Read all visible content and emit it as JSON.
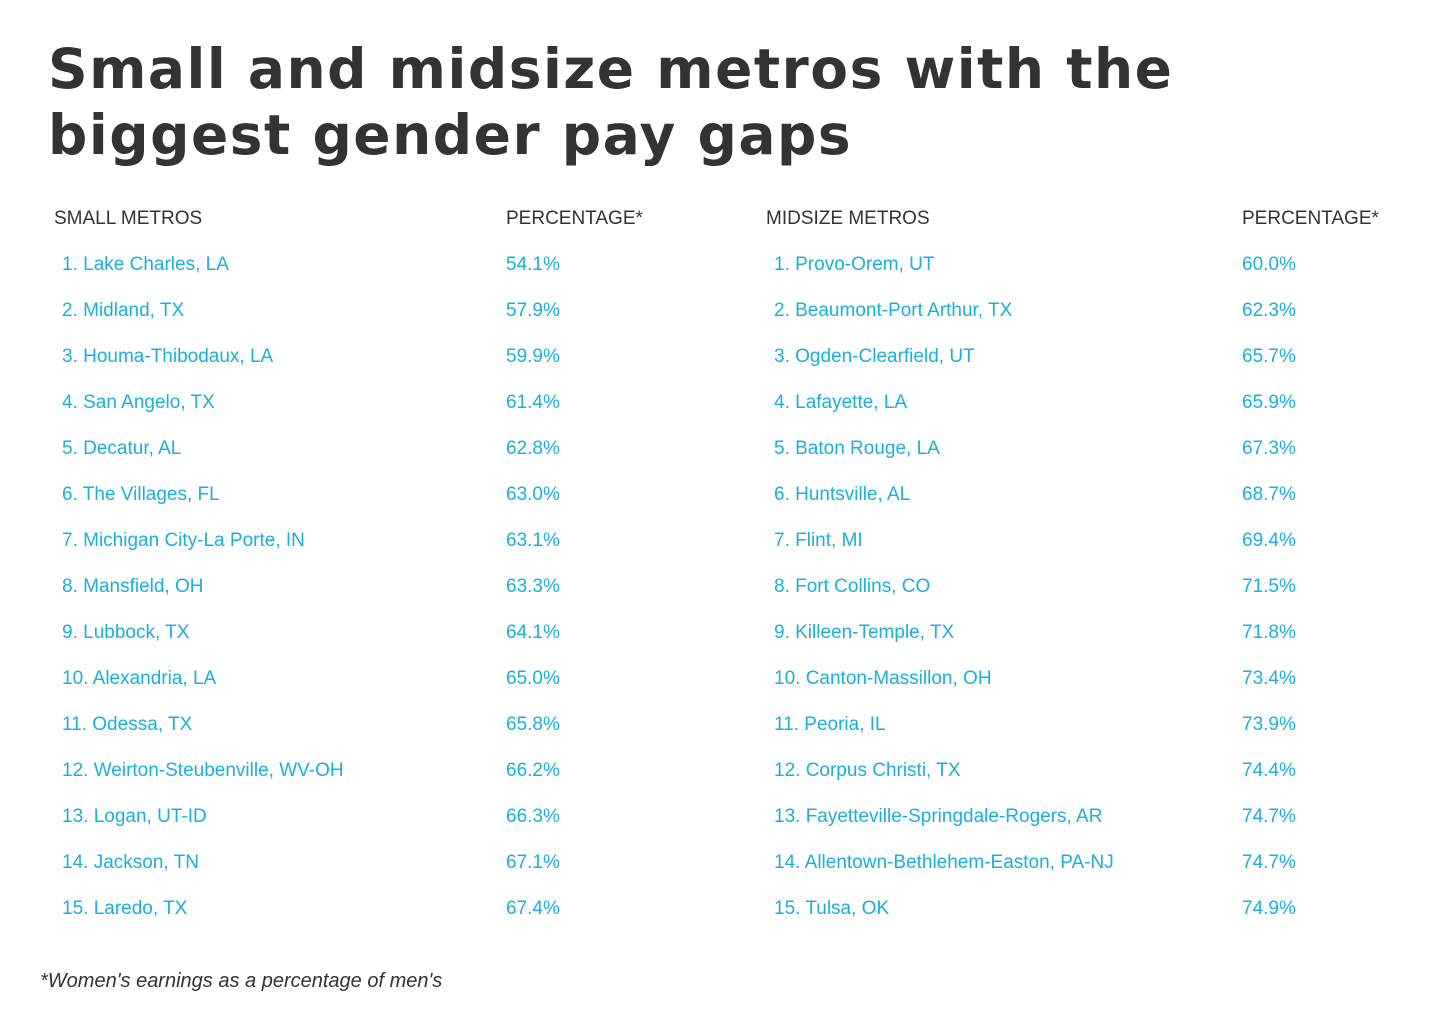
{
  "title": "Small and midsize metros with the biggest gender pay gaps",
  "footnote": "*Women's earnings as a percentage of men's",
  "colors": {
    "text": "#333333",
    "accent": "#1ab0d8",
    "background": "#ffffff"
  },
  "tables": {
    "small": {
      "header_name": "SMALL METROS",
      "header_value": "PERCENTAGE*",
      "rows": [
        {
          "label": "1. Lake Charles, LA",
          "value": "54.1%"
        },
        {
          "label": "2. Midland, TX",
          "value": "57.9%"
        },
        {
          "label": "3. Houma-Thibodaux, LA",
          "value": "59.9%"
        },
        {
          "label": "4. San Angelo, TX",
          "value": "61.4%"
        },
        {
          "label": "5. Decatur, AL",
          "value": "62.8%"
        },
        {
          "label": "6. The Villages, FL",
          "value": "63.0%"
        },
        {
          "label": "7. Michigan City-La Porte, IN",
          "value": "63.1%"
        },
        {
          "label": "8. Mansfield, OH",
          "value": "63.3%"
        },
        {
          "label": "9. Lubbock, TX",
          "value": "64.1%"
        },
        {
          "label": "10. Alexandria, LA",
          "value": "65.0%"
        },
        {
          "label": "11. Odessa, TX",
          "value": "65.8%"
        },
        {
          "label": "12. Weirton-Steubenville, WV-OH",
          "value": "66.2%"
        },
        {
          "label": "13. Logan, UT-ID",
          "value": "66.3%"
        },
        {
          "label": "14. Jackson, TN",
          "value": "67.1%"
        },
        {
          "label": "15. Laredo, TX",
          "value": "67.4%"
        }
      ]
    },
    "mid": {
      "header_name": "MIDSIZE METROS",
      "header_value": "PERCENTAGE*",
      "rows": [
        {
          "label": "1. Provo-Orem, UT",
          "value": "60.0%"
        },
        {
          "label": "2. Beaumont-Port Arthur, TX",
          "value": "62.3%"
        },
        {
          "label": "3. Ogden-Clearfield, UT",
          "value": "65.7%"
        },
        {
          "label": "4. Lafayette, LA",
          "value": "65.9%"
        },
        {
          "label": "5. Baton Rouge, LA",
          "value": "67.3%"
        },
        {
          "label": "6. Huntsville, AL",
          "value": "68.7%"
        },
        {
          "label": "7. Flint, MI",
          "value": "69.4%"
        },
        {
          "label": "8. Fort Collins, CO",
          "value": "71.5%"
        },
        {
          "label": "9. Killeen-Temple, TX",
          "value": "71.8%"
        },
        {
          "label": "10. Canton-Massillon, OH",
          "value": "73.4%"
        },
        {
          "label": "11. Peoria, IL",
          "value": "73.9%"
        },
        {
          "label": "12. Corpus Christi, TX",
          "value": "74.4%"
        },
        {
          "label": "13. Fayetteville-Springdale-Rogers, AR",
          "value": "74.7%"
        },
        {
          "label": "14. Allentown-Bethlehem-Easton, PA-NJ",
          "value": "74.7%"
        },
        {
          "label": "15. Tulsa, OK",
          "value": "74.9%"
        }
      ]
    }
  },
  "chart_data": {
    "type": "table",
    "title": "Small and midsize metros with the biggest gender pay gaps",
    "note": "*Women's earnings as a percentage of men's",
    "tables": [
      {
        "columns": [
          "SMALL METROS",
          "PERCENTAGE*"
        ],
        "categories": [
          "Lake Charles, LA",
          "Midland, TX",
          "Houma-Thibodaux, LA",
          "San Angelo, TX",
          "Decatur, AL",
          "The Villages, FL",
          "Michigan City-La Porte, IN",
          "Mansfield, OH",
          "Lubbock, TX",
          "Alexandria, LA",
          "Odessa, TX",
          "Weirton-Steubenville, WV-OH",
          "Logan, UT-ID",
          "Jackson, TN",
          "Laredo, TX"
        ],
        "values": [
          54.1,
          57.9,
          59.9,
          61.4,
          62.8,
          63.0,
          63.1,
          63.3,
          64.1,
          65.0,
          65.8,
          66.2,
          66.3,
          67.1,
          67.4
        ]
      },
      {
        "columns": [
          "MIDSIZE METROS",
          "PERCENTAGE*"
        ],
        "categories": [
          "Provo-Orem, UT",
          "Beaumont-Port Arthur, TX",
          "Ogden-Clearfield, UT",
          "Lafayette, LA",
          "Baton Rouge, LA",
          "Huntsville, AL",
          "Flint, MI",
          "Fort Collins, CO",
          "Killeen-Temple, TX",
          "Canton-Massillon, OH",
          "Peoria, IL",
          "Corpus Christi, TX",
          "Fayetteville-Springdale-Rogers, AR",
          "Allentown-Bethlehem-Easton, PA-NJ",
          "Tulsa, OK"
        ],
        "values": [
          60.0,
          62.3,
          65.7,
          65.9,
          67.3,
          68.7,
          69.4,
          71.5,
          71.8,
          73.4,
          73.9,
          74.4,
          74.7,
          74.7,
          74.9
        ]
      }
    ]
  }
}
